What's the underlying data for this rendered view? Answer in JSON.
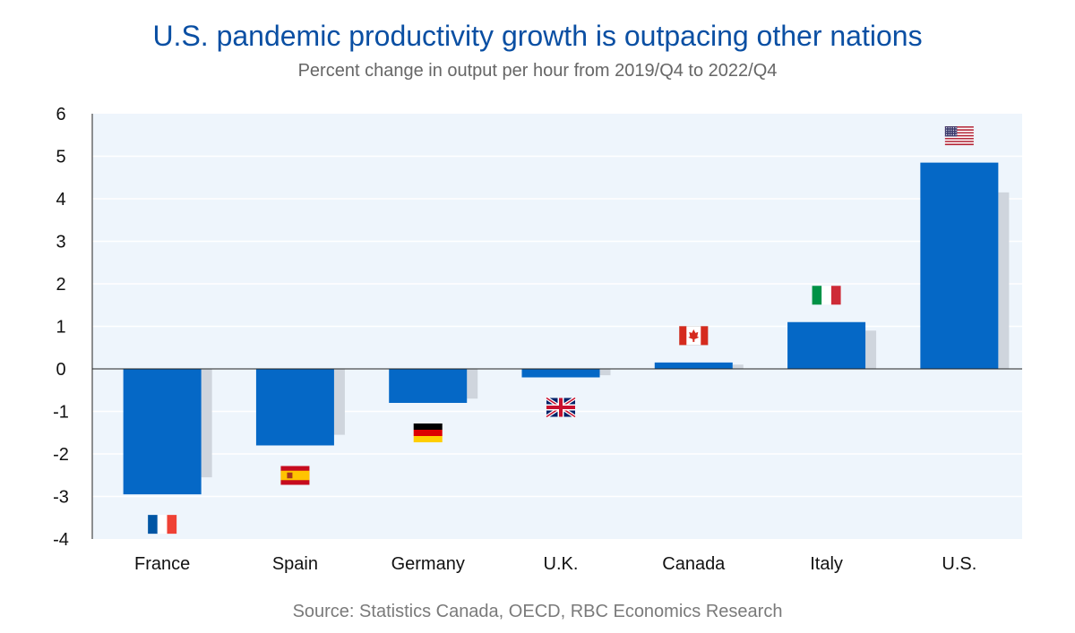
{
  "chart_data": {
    "type": "bar",
    "title": "U.S. pandemic productivity growth is outpacing other nations",
    "subtitle": "Percent change in output per hour from 2019/Q4 to 2022/Q4",
    "source": "Source: Statistics Canada, OECD, RBC Economics Research",
    "categories": [
      "France",
      "Spain",
      "Germany",
      "U.K.",
      "Canada",
      "Italy",
      "U.S."
    ],
    "values": [
      -2.95,
      -1.8,
      -0.8,
      -0.2,
      0.15,
      1.1,
      4.85
    ],
    "shadow_values": [
      -2.55,
      -1.55,
      -0.7,
      -0.15,
      0.1,
      0.9,
      4.15
    ],
    "flags": [
      "france-flag",
      "spain-flag",
      "germany-flag",
      "uk-flag",
      "canada-flag",
      "italy-flag",
      "us-flag"
    ],
    "ylim": [
      -4,
      6
    ],
    "yticks": [
      "6",
      "5",
      "4",
      "3",
      "2",
      "1",
      "0",
      "-1",
      "-2",
      "-3",
      "-4"
    ],
    "grid": true,
    "colors": {
      "bar": "#0568c6",
      "shadow": "#cfd5dd",
      "plot_bg": "#eef5fc",
      "grid": "#ffffff",
      "title": "#0a4fa3"
    }
  }
}
